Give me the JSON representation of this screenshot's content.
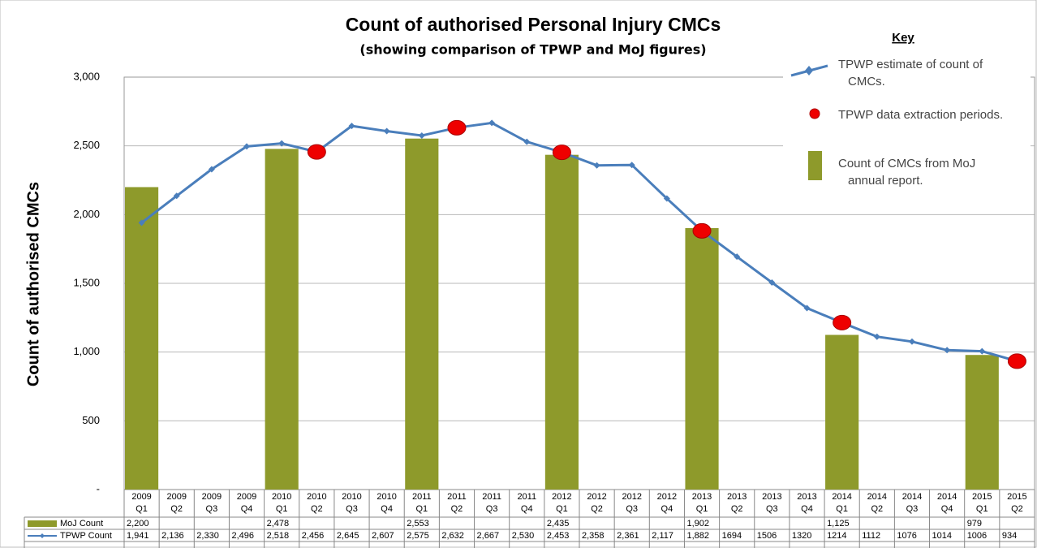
{
  "chart_data": {
    "type": "combo",
    "title": "Count of authorised Personal Injury CMCs",
    "subtitle": "(showing comparison of TPWP and MoJ figures)",
    "y_label": "Count of authorised CMCs",
    "legend_title": "Key",
    "categories": [
      [
        "2009",
        "Q1"
      ],
      [
        "2009",
        "Q2"
      ],
      [
        "2009",
        "Q3"
      ],
      [
        "2009",
        "Q4"
      ],
      [
        "2010",
        "Q1"
      ],
      [
        "2010",
        "Q2"
      ],
      [
        "2010",
        "Q3"
      ],
      [
        "2010",
        "Q4"
      ],
      [
        "2011",
        "Q1"
      ],
      [
        "2011",
        "Q2"
      ],
      [
        "2011",
        "Q3"
      ],
      [
        "2011",
        "Q4"
      ],
      [
        "2012",
        "Q1"
      ],
      [
        "2012",
        "Q2"
      ],
      [
        "2012",
        "Q3"
      ],
      [
        "2012",
        "Q4"
      ],
      [
        "2013",
        "Q1"
      ],
      [
        "2013",
        "Q2"
      ],
      [
        "2013",
        "Q3"
      ],
      [
        "2013",
        "Q4"
      ],
      [
        "2014",
        "Q1"
      ],
      [
        "2014",
        "Q2"
      ],
      [
        "2014",
        "Q3"
      ],
      [
        "2014",
        "Q4"
      ],
      [
        "2015",
        "Q1"
      ],
      [
        "2015",
        "Q2"
      ]
    ],
    "series": [
      {
        "name": "MoJ Count",
        "key_label": "Count of CMCs from MoJ annual report.",
        "kind": "bar",
        "color": "#8e9a2b",
        "values": [
          2200,
          null,
          null,
          null,
          2478,
          null,
          null,
          null,
          2553,
          null,
          null,
          null,
          2435,
          null,
          null,
          null,
          1902,
          null,
          null,
          null,
          1125,
          null,
          null,
          null,
          979,
          null
        ],
        "value_labels": [
          "2,200",
          null,
          null,
          null,
          "2,478",
          null,
          null,
          null,
          "2,553",
          null,
          null,
          null,
          "2,435",
          null,
          null,
          null,
          "1,902",
          null,
          null,
          null,
          "1,125",
          null,
          null,
          null,
          "979",
          null
        ]
      },
      {
        "name": "TPWP Count",
        "key_label": "TPWP estimate of count of CMCs.",
        "kind": "line",
        "color": "#4a7ebb",
        "values": [
          1941,
          2136,
          2330,
          2496,
          2518,
          2456,
          2645,
          2607,
          2575,
          2632,
          2667,
          2530,
          2453,
          2358,
          2361,
          2117,
          1882,
          1694,
          1506,
          1320,
          1214,
          1112,
          1076,
          1014,
          1006,
          934
        ],
        "value_labels": [
          "1,941",
          "2,136",
          "2,330",
          "2,496",
          "2,518",
          "2,456",
          "2,645",
          "2,607",
          "2,575",
          "2,632",
          "2,667",
          "2,530",
          "2,453",
          "2,358",
          "2,361",
          "2,117",
          "1,882",
          "1694",
          "1506",
          "1320",
          "1214",
          "1112",
          "1076",
          "1014",
          "1006",
          "934"
        ]
      },
      {
        "key_label": "TPWP data extraction periods.",
        "kind": "dot",
        "color": "#ee0000",
        "values": [
          null,
          null,
          null,
          null,
          null,
          2456,
          null,
          null,
          null,
          2632,
          null,
          null,
          2453,
          null,
          null,
          null,
          1882,
          null,
          null,
          null,
          1214,
          null,
          null,
          null,
          null,
          934
        ]
      }
    ],
    "ylim": [
      0,
      3000
    ],
    "yticks": [
      {
        "value": 0,
        "label": "-"
      },
      500,
      {
        "value": 1000,
        "label": "1,000"
      },
      {
        "value": 1500,
        "label": "1,500"
      },
      {
        "value": 2000,
        "label": "2,000"
      },
      {
        "value": 2500,
        "label": "2,500"
      },
      {
        "value": 3000,
        "label": "3,000"
      }
    ],
    "grid": true
  }
}
